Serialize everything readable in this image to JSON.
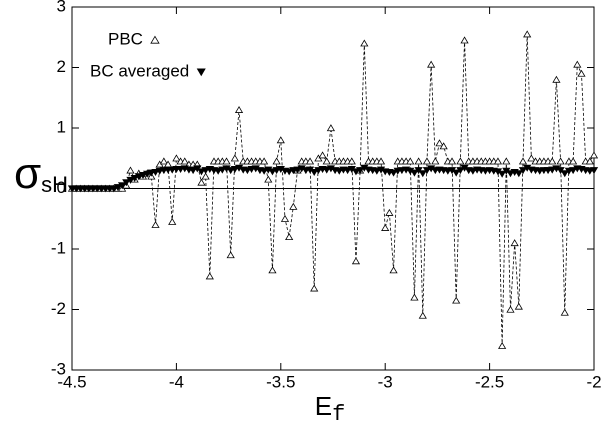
{
  "chart_data": {
    "type": "line",
    "xlabel": "E",
    "xlabel_sub": "f",
    "ylabel": "σ",
    "ylabel_sub": "sH",
    "x": [
      -4.5,
      -4.48,
      -4.46,
      -4.44,
      -4.42,
      -4.4,
      -4.38,
      -4.36,
      -4.34,
      -4.32,
      -4.3,
      -4.28,
      -4.26,
      -4.24,
      -4.22,
      -4.2,
      -4.18,
      -4.16,
      -4.14,
      -4.12,
      -4.1,
      -4.08,
      -4.06,
      -4.04,
      -4.02,
      -4,
      -3.98,
      -3.96,
      -3.94,
      -3.92,
      -3.9,
      -3.88,
      -3.86,
      -3.84,
      -3.82,
      -3.8,
      -3.78,
      -3.76,
      -3.74,
      -3.72,
      -3.7,
      -3.68,
      -3.66,
      -3.64,
      -3.62,
      -3.6,
      -3.58,
      -3.56,
      -3.54,
      -3.52,
      -3.5,
      -3.48,
      -3.46,
      -3.44,
      -3.42,
      -3.4,
      -3.38,
      -3.36,
      -3.34,
      -3.32,
      -3.3,
      -3.28,
      -3.26,
      -3.24,
      -3.22,
      -3.2,
      -3.18,
      -3.16,
      -3.14,
      -3.12,
      -3.1,
      -3.08,
      -3.06,
      -3.04,
      -3.02,
      -3,
      -2.98,
      -2.96,
      -2.94,
      -2.92,
      -2.9,
      -2.88,
      -2.86,
      -2.84,
      -2.82,
      -2.8,
      -2.78,
      -2.76,
      -2.74,
      -2.72,
      -2.7,
      -2.68,
      -2.66,
      -2.64,
      -2.62,
      -2.6,
      -2.58,
      -2.56,
      -2.54,
      -2.52,
      -2.5,
      -2.48,
      -2.46,
      -2.44,
      -2.42,
      -2.4,
      -2.38,
      -2.36,
      -2.34,
      -2.32,
      -2.3,
      -2.28,
      -2.26,
      -2.24,
      -2.22,
      -2.2,
      -2.18,
      -2.16,
      -2.14,
      -2.12,
      -2.1,
      -2.08,
      -2.06,
      -2.04,
      -2.02,
      -2
    ],
    "series": [
      {
        "name": "PBC",
        "color": "#000000",
        "marker": "open-triangle-up",
        "dashed": true,
        "values": [
          0,
          0,
          0,
          0,
          0,
          0,
          0,
          0,
          0,
          0,
          0,
          0,
          0,
          0.05,
          0.3,
          0.15,
          0.25,
          0.2,
          0.25,
          0.2,
          -0.6,
          0.4,
          0.45,
          0.4,
          -0.55,
          0.5,
          0.45,
          0.45,
          0.4,
          0.4,
          0.4,
          0.1,
          0.2,
          -1.45,
          0.45,
          0.45,
          0.45,
          0.45,
          -1.1,
          0.5,
          1.3,
          0.45,
          0.45,
          0.45,
          0.45,
          0.45,
          0.45,
          0.15,
          -1.35,
          0.45,
          0.8,
          -0.5,
          -0.8,
          -0.3,
          0.3,
          0.45,
          0.45,
          0.45,
          -1.65,
          0.5,
          0.55,
          0.45,
          1.0,
          0.45,
          0.45,
          0.45,
          0.45,
          0.45,
          -1.2,
          0.3,
          2.4,
          0.45,
          0.45,
          0.45,
          0.45,
          -0.65,
          -0.4,
          -1.35,
          0.45,
          0.45,
          0.45,
          0.45,
          -1.8,
          0.45,
          -2.1,
          0.45,
          2.05,
          0.45,
          0.75,
          0.7,
          0.45,
          0.45,
          -1.85,
          0.45,
          2.45,
          0.45,
          0.45,
          0.45,
          0.45,
          0.45,
          0.45,
          0.45,
          0.45,
          -2.6,
          0.45,
          -2.0,
          -0.9,
          -1.95,
          0.45,
          2.55,
          0.5,
          0.45,
          0.45,
          0.45,
          0.45,
          0.45,
          1.8,
          0.45,
          -2.05,
          0.45,
          0.45,
          2.05,
          1.9,
          0.45,
          0.45,
          0.55
        ]
      },
      {
        "name": "BC averaged",
        "color": "#000000",
        "marker": "filled-triangle-down",
        "dashed": false,
        "values": [
          0,
          0,
          0,
          0,
          0,
          0,
          0,
          0,
          0,
          0,
          0,
          0.02,
          0.05,
          0.1,
          0.14,
          0.17,
          0.2,
          0.22,
          0.24,
          0.26,
          0.27,
          0.29,
          0.3,
          0.31,
          0.31,
          0.32,
          0.32,
          0.33,
          0.31,
          0.3,
          0.33,
          0.28,
          0.3,
          0.32,
          0.3,
          0.29,
          0.31,
          0.33,
          0.3,
          0.32,
          0.34,
          0.31,
          0.3,
          0.32,
          0.33,
          0.3,
          0.29,
          0.31,
          0.28,
          0.3,
          0.32,
          0.29,
          0.28,
          0.3,
          0.31,
          0.33,
          0.3,
          0.31,
          0.27,
          0.3,
          0.32,
          0.31,
          0.33,
          0.3,
          0.29,
          0.31,
          0.3,
          0.32,
          0.28,
          0.3,
          0.34,
          0.31,
          0.3,
          0.29,
          0.31,
          0.28,
          0.27,
          0.26,
          0.29,
          0.3,
          0.31,
          0.29,
          0.26,
          0.3,
          0.25,
          0.3,
          0.33,
          0.3,
          0.31,
          0.3,
          0.29,
          0.3,
          0.26,
          0.3,
          0.34,
          0.3,
          0.29,
          0.31,
          0.3,
          0.29,
          0.3,
          0.29,
          0.28,
          0.24,
          0.29,
          0.25,
          0.27,
          0.25,
          0.3,
          0.34,
          0.31,
          0.3,
          0.29,
          0.3,
          0.3,
          0.31,
          0.33,
          0.3,
          0.25,
          0.29,
          0.3,
          0.33,
          0.32,
          0.3,
          0.29,
          0.3
        ]
      }
    ],
    "xlim": [
      -4.5,
      -2
    ],
    "xticks": [
      -4.5,
      -4,
      -3.5,
      -3,
      -2.5,
      -2
    ],
    "ylim": [
      -3,
      3
    ],
    "yticks": [
      -3,
      -2,
      -1,
      0,
      1,
      2,
      3
    ],
    "hlines": [
      0
    ],
    "grid": false,
    "legend": "upper left"
  }
}
